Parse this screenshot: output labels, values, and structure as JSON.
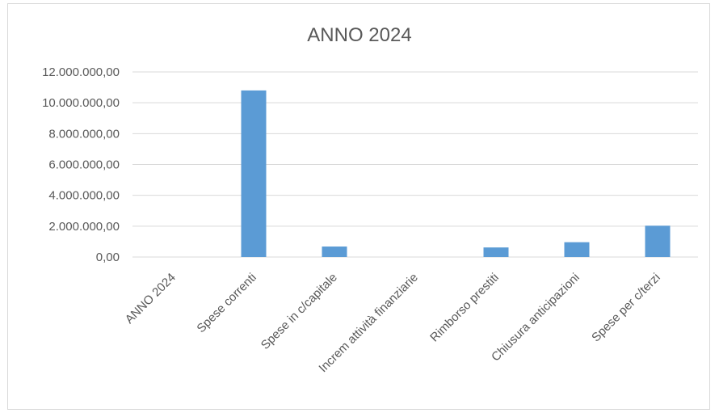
{
  "chart_data": {
    "type": "bar",
    "title": "ANNO 2024",
    "xlabel": "",
    "ylabel": "",
    "categories": [
      "ANNO 2024",
      "Spese correnti",
      "Spese in c/capitale",
      "Increm attività finanziarie",
      "Rimborso prestiti",
      "Chiusura anticipazioni",
      "Spese per c/terzi"
    ],
    "values": [
      0,
      10800000,
      680000,
      0,
      620000,
      960000,
      2030000
    ],
    "ylim": [
      0,
      12000000
    ],
    "y_ticks": [
      0,
      2000000,
      4000000,
      6000000,
      8000000,
      10000000,
      12000000
    ],
    "y_tick_labels": [
      "0,00",
      "2.000.000,00",
      "4.000.000,00",
      "6.000.000,00",
      "8.000.000,00",
      "10.000.000,00",
      "12.000.000,00"
    ],
    "grid": true,
    "legend": "none",
    "bar_color": "#5b9bd5",
    "grid_color": "#d9d9d9",
    "text_color": "#595959"
  }
}
